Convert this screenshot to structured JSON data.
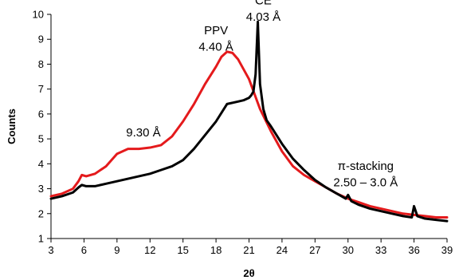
{
  "chart_data": {
    "type": "line",
    "title": "",
    "xlabel": "2θ",
    "ylabel": "Counts",
    "xlim": [
      3,
      39
    ],
    "ylim": [
      1,
      10
    ],
    "x_ticks": [
      3,
      6,
      9,
      12,
      15,
      18,
      21,
      24,
      27,
      30,
      33,
      36,
      39
    ],
    "y_ticks": [
      1,
      2,
      3,
      4,
      5,
      6,
      7,
      8,
      9,
      10
    ],
    "grid": false,
    "legend": "none",
    "series": [
      {
        "color": "#000000",
        "x": [
          3.0,
          4.0,
          5.0,
          5.5,
          5.8,
          6.2,
          7.0,
          8.0,
          9.0,
          10.0,
          11.0,
          12.0,
          13.0,
          14.0,
          15.0,
          16.0,
          17.0,
          18.0,
          19.0,
          20.0,
          20.5,
          21.0,
          21.2,
          21.4,
          21.6,
          21.8,
          22.0,
          22.3,
          22.6,
          23.0,
          24.0,
          25.0,
          26.0,
          27.0,
          28.0,
          29.0,
          29.8,
          30.0,
          30.3,
          31.0,
          32.0,
          33.0,
          34.0,
          35.0,
          35.8,
          36.0,
          36.3,
          37.0,
          38.0,
          39.0
        ],
        "y": [
          2.6,
          2.7,
          2.85,
          3.05,
          3.15,
          3.1,
          3.1,
          3.2,
          3.3,
          3.4,
          3.5,
          3.6,
          3.75,
          3.9,
          4.15,
          4.6,
          5.15,
          5.7,
          6.4,
          6.5,
          6.55,
          6.65,
          6.75,
          6.9,
          7.6,
          9.7,
          7.2,
          6.2,
          5.75,
          5.5,
          4.8,
          4.2,
          3.75,
          3.35,
          3.05,
          2.8,
          2.6,
          2.75,
          2.5,
          2.35,
          2.2,
          2.1,
          2.0,
          1.9,
          1.85,
          2.3,
          1.9,
          1.8,
          1.75,
          1.7
        ]
      },
      {
        "color": "#e41a1c",
        "x": [
          3.0,
          4.0,
          5.0,
          5.5,
          5.8,
          6.2,
          7.0,
          8.0,
          9.0,
          10.0,
          11.0,
          12.0,
          13.0,
          14.0,
          15.0,
          16.0,
          17.0,
          18.0,
          18.5,
          19.0,
          19.5,
          20.0,
          21.0,
          22.0,
          23.0,
          24.0,
          25.0,
          26.0,
          27.0,
          28.0,
          29.0,
          30.0,
          31.0,
          32.0,
          33.0,
          34.0,
          35.0,
          36.0,
          37.0,
          38.0,
          39.0
        ],
        "y": [
          2.7,
          2.8,
          3.0,
          3.3,
          3.55,
          3.5,
          3.6,
          3.9,
          4.4,
          4.6,
          4.6,
          4.65,
          4.75,
          5.1,
          5.7,
          6.4,
          7.2,
          7.9,
          8.3,
          8.5,
          8.45,
          8.2,
          7.4,
          6.2,
          5.3,
          4.5,
          3.9,
          3.55,
          3.3,
          3.05,
          2.8,
          2.6,
          2.45,
          2.3,
          2.2,
          2.1,
          2.0,
          1.95,
          1.9,
          1.85,
          1.85
        ]
      }
    ],
    "annotations": [
      {
        "text": "CE",
        "x": 22.3,
        "y": 10.4
      },
      {
        "text": "4.03 Å",
        "x": 22.3,
        "y": 9.75
      },
      {
        "text": "PPV",
        "x": 18.0,
        "y": 9.2
      },
      {
        "text": "4.40 Å",
        "x": 18.0,
        "y": 8.55
      },
      {
        "text": "9.30 Å",
        "x": 11.4,
        "y": 5.1
      },
      {
        "text": "π-stacking",
        "x": 31.6,
        "y": 3.75
      },
      {
        "text": "2.50 – 3.0 Å",
        "x": 31.6,
        "y": 3.1
      }
    ]
  }
}
